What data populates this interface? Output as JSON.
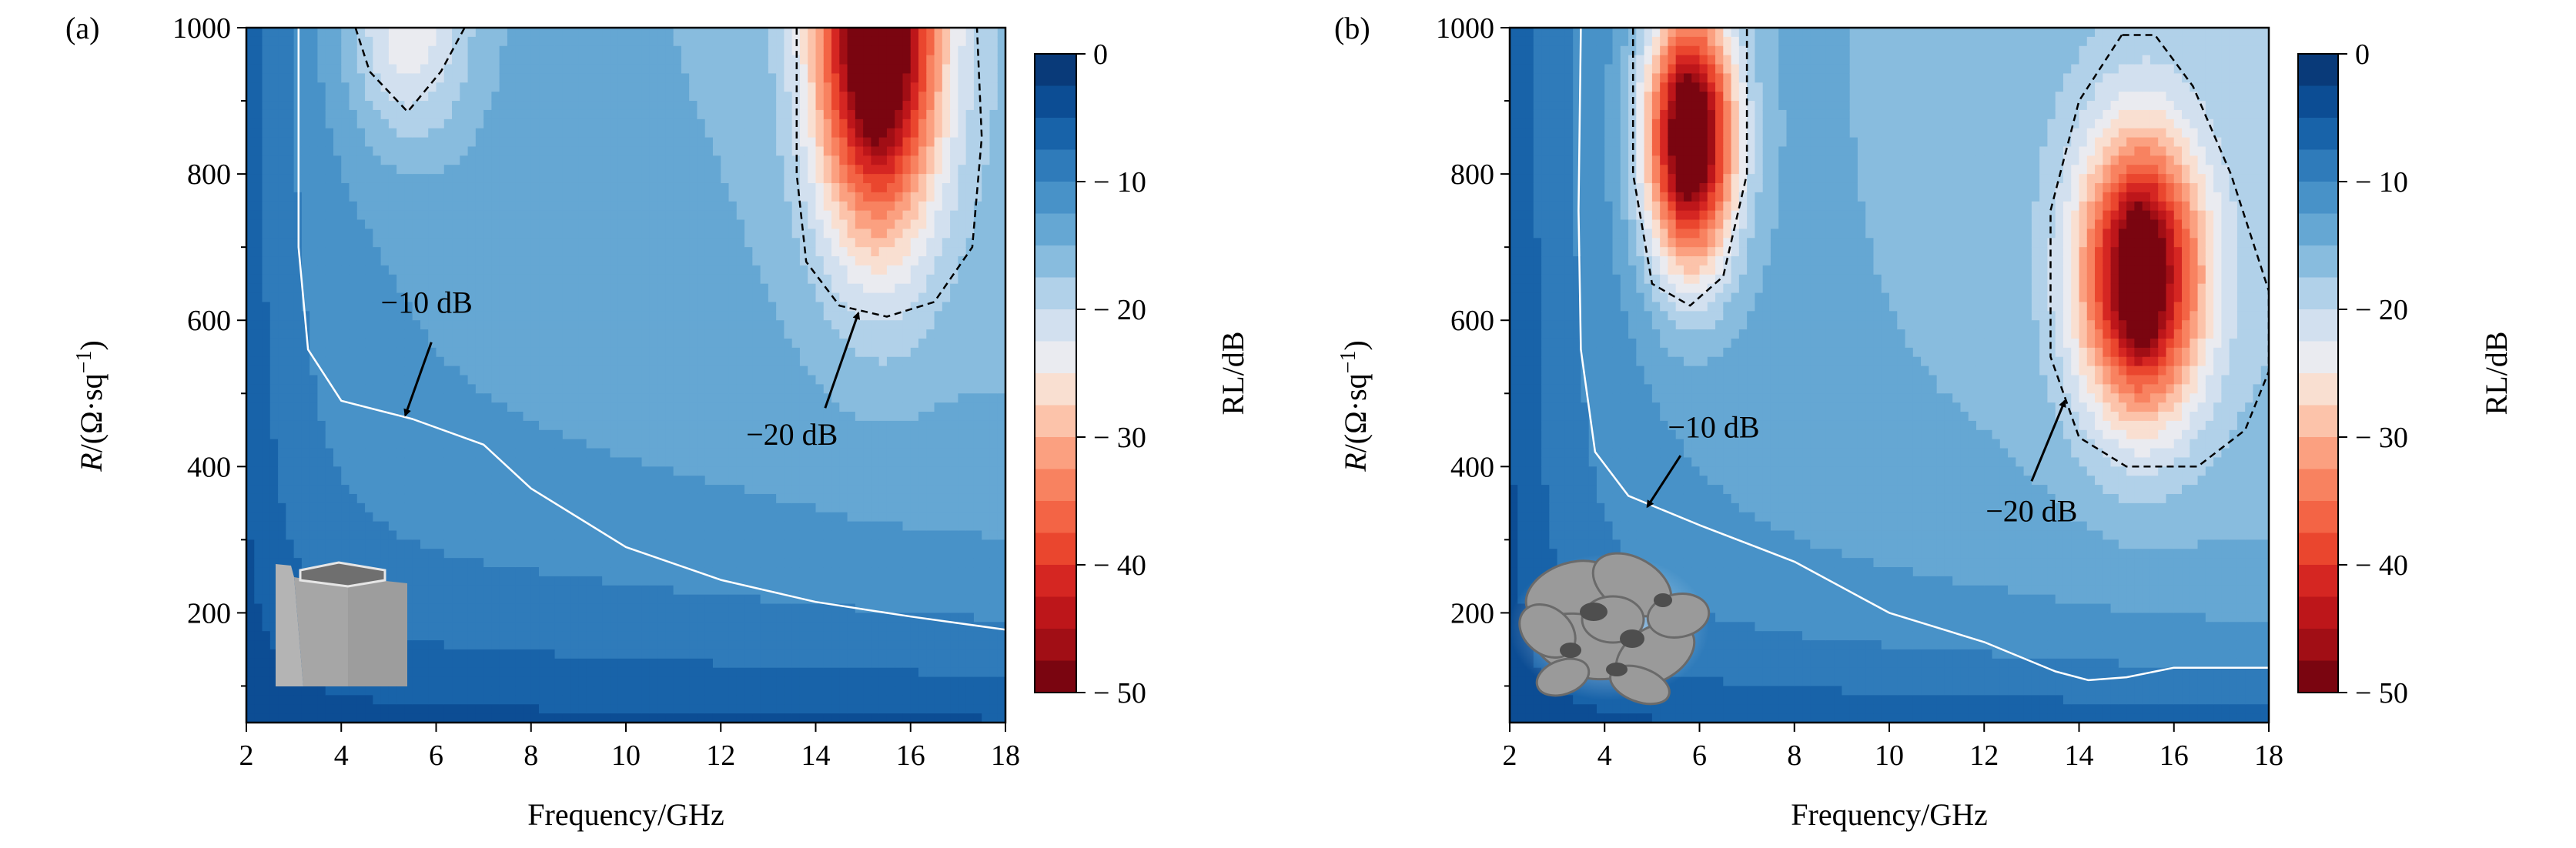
{
  "chart_data": [
    {
      "type": "heatmap",
      "panel_label": "(a)",
      "xlabel": "Frequency/GHz",
      "ylabel_main": "R",
      "ylabel_unit": "/(Ω·sq",
      "ylabel_sup": "−1",
      "ylabel_close": ")",
      "xlim": [
        2,
        18
      ],
      "ylim": [
        50,
        1000
      ],
      "xticks": [
        2,
        4,
        6,
        8,
        10,
        12,
        14,
        16,
        18
      ],
      "yticks": [
        200,
        400,
        600,
        800,
        1000
      ],
      "colorbar": {
        "label": "RL/dB",
        "range": [
          -50,
          0
        ],
        "ticks": [
          0,
          -10,
          -20,
          -30,
          -40,
          -50
        ],
        "step": 2.5
      },
      "field_model": {
        "base": {
          "a": 11,
          "rscale": 250,
          "fscale": 1.2,
          "slope": 0.25
        },
        "minima": [
          {
            "f": 15.3,
            "R": 1000,
            "depth": 40,
            "sf": 1.3,
            "sR": 280
          },
          {
            "f": 15.3,
            "R": 1000,
            "depth": 15,
            "sf": 0.4,
            "sR": 120
          },
          {
            "f": 5.4,
            "R": 1000,
            "depth": 11,
            "sf": 1.3,
            "sR": 156
          }
        ]
      },
      "contours": [
        {
          "level": -10,
          "style": "white-solid",
          "points": [
            [
              3.1,
              1000
            ],
            [
              3.1,
              700
            ],
            [
              3.3,
              560
            ],
            [
              4,
              490
            ],
            [
              5.5,
              465
            ],
            [
              7,
              430
            ],
            [
              8,
              370
            ],
            [
              10,
              290
            ],
            [
              12,
              245
            ],
            [
              14,
              215
            ],
            [
              16,
              195
            ],
            [
              18,
              177
            ]
          ]
        },
        {
          "level": -20,
          "style": "black-dashed",
          "points": [
            [
              4.3,
              1000
            ],
            [
              4.6,
              940
            ],
            [
              5.4,
              885
            ],
            [
              6.1,
              940
            ],
            [
              6.6,
              1000
            ]
          ]
        },
        {
          "level": -20,
          "style": "black-dashed",
          "points": [
            [
              13.6,
              1000
            ],
            [
              13.6,
              800
            ],
            [
              13.8,
              680
            ],
            [
              14.5,
              620
            ],
            [
              15.5,
              605
            ],
            [
              16.5,
              625
            ],
            [
              17.3,
              700
            ],
            [
              17.5,
              850
            ],
            [
              17.4,
              1000
            ]
          ]
        }
      ],
      "annotations": [
        {
          "text": "−10 dB",
          "text_at": [
            5.8,
            610
          ],
          "arrow_from": [
            5.9,
            570
          ],
          "arrow_to": [
            5.35,
            470
          ]
        },
        {
          "text": "−20 dB",
          "text_at": [
            13.5,
            430
          ],
          "arrow_from": [
            14.2,
            480
          ],
          "arrow_to": [
            14.9,
            610
          ]
        }
      ],
      "inset": "hexagonal-prism"
    },
    {
      "type": "heatmap",
      "panel_label": "(b)",
      "xlabel": "Frequency/GHz",
      "ylabel_main": "R",
      "ylabel_unit": "/(Ω·sq",
      "ylabel_sup": "−1",
      "ylabel_close": ")",
      "xlim": [
        2,
        18
      ],
      "ylim": [
        50,
        1000
      ],
      "xticks": [
        2,
        4,
        6,
        8,
        10,
        12,
        14,
        16,
        18
      ],
      "yticks": [
        200,
        400,
        600,
        800,
        1000
      ],
      "colorbar": {
        "label": "RL/dB",
        "range": [
          -50,
          0
        ],
        "ticks": [
          0,
          -10,
          -20,
          -30,
          -40,
          -50
        ],
        "step": 2.5
      },
      "field_model": {
        "base": {
          "a": 11,
          "rscale": 170,
          "fscale": 1.6,
          "slope": 0.3
        },
        "minima": [
          {
            "f": 5.8,
            "R": 850,
            "depth": 40,
            "sf": 0.95,
            "sR": 180
          },
          {
            "f": 5.8,
            "R": 850,
            "depth": 15,
            "sf": 0.25,
            "sR": 60
          },
          {
            "f": 15.3,
            "R": 660,
            "depth": 35,
            "sf": 1.29,
            "sR": 190
          },
          {
            "f": 15.3,
            "R": 660,
            "depth": 12,
            "sf": 0.35,
            "sR": 90
          }
        ]
      },
      "contours": [
        {
          "level": -10,
          "style": "white-solid",
          "points": [
            [
              3.5,
              1000
            ],
            [
              3.45,
              750
            ],
            [
              3.5,
              560
            ],
            [
              3.8,
              420
            ],
            [
              4.5,
              360
            ],
            [
              6,
              320
            ],
            [
              8,
              270
            ],
            [
              10,
              200
            ],
            [
              12,
              160
            ],
            [
              13.5,
              120
            ],
            [
              14.2,
              108
            ],
            [
              15,
              112
            ],
            [
              16,
              125
            ],
            [
              18,
              125
            ]
          ]
        },
        {
          "level": -20,
          "style": "black-dashed",
          "points": [
            [
              4.6,
              1000
            ],
            [
              4.6,
              800
            ],
            [
              5,
              650
            ],
            [
              5.8,
              620
            ],
            [
              6.5,
              660
            ],
            [
              7,
              800
            ],
            [
              7,
              1000
            ]
          ]
        },
        {
          "level": -20,
          "style": "black-dashed",
          "points": [
            [
              14.9,
              990
            ],
            [
              14,
              900
            ],
            [
              13.4,
              750
            ],
            [
              13.4,
              550
            ],
            [
              14,
              440
            ],
            [
              15,
              400
            ],
            [
              16.5,
              400
            ],
            [
              17.5,
              450
            ],
            [
              18,
              530
            ],
            [
              18,
              640
            ],
            [
              17.2,
              800
            ],
            [
              16.4,
              920
            ],
            [
              15.6,
              990
            ],
            [
              14.9,
              990
            ]
          ]
        }
      ],
      "annotations": [
        {
          "text": "−10 dB",
          "text_at": [
            6.3,
            440
          ],
          "arrow_from": [
            5.6,
            415
          ],
          "arrow_to": [
            4.9,
            345
          ]
        },
        {
          "text": "−20 dB",
          "text_at": [
            13,
            325
          ],
          "arrow_from": [
            13,
            380
          ],
          "arrow_to": [
            13.7,
            490
          ]
        }
      ],
      "inset": "gyroid"
    }
  ]
}
